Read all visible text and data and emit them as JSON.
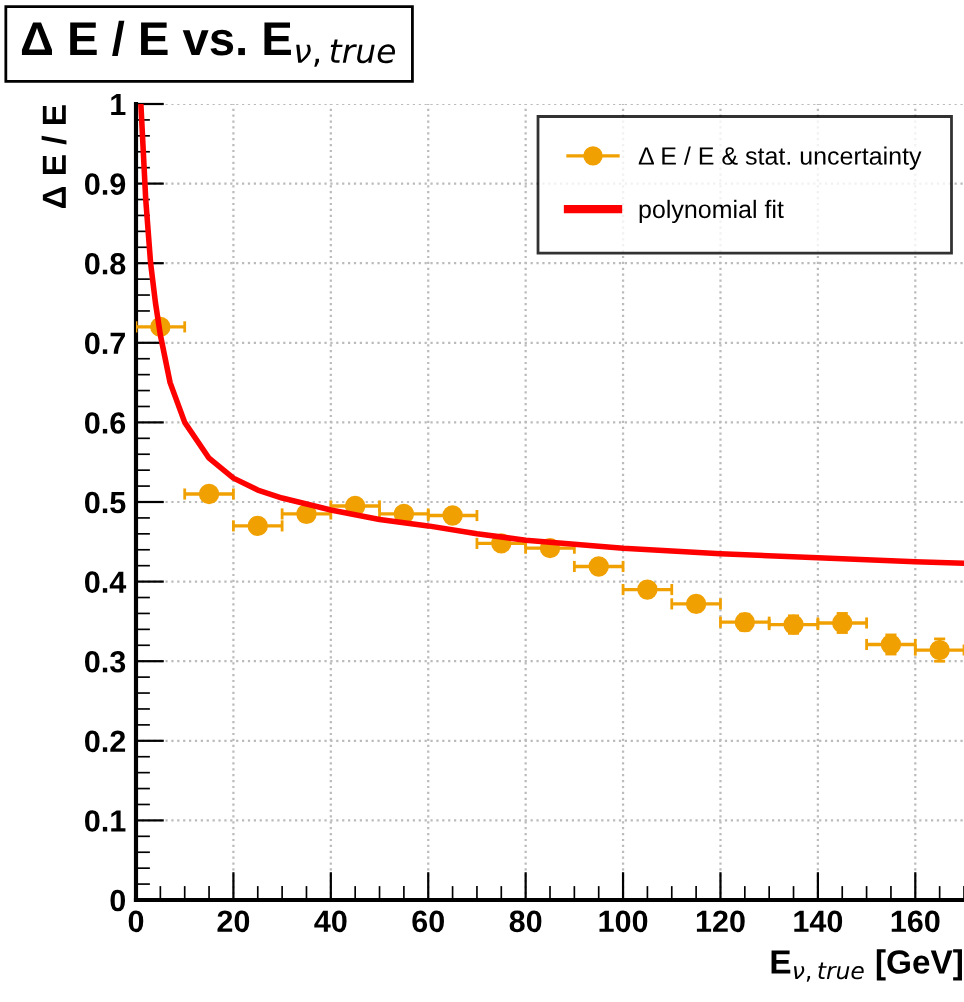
{
  "chart_data": {
    "type": "scatter",
    "title": "Δ E / E vs. E$_{ν,true}$",
    "xlabel": "E$_{ν,true}$ [GeV]",
    "ylabel": "Δ E / E",
    "xlim": [
      0,
      170
    ],
    "ylim": [
      0,
      1
    ],
    "xticks": [
      0,
      20,
      40,
      60,
      80,
      100,
      120,
      140,
      160
    ],
    "yticks": [
      0,
      0.1,
      0.2,
      0.3,
      0.4,
      0.5,
      0.6,
      0.7,
      0.8,
      0.9,
      1
    ],
    "grid": true,
    "legend": "top right",
    "marker": "circle",
    "series": [
      {
        "name": "Δ E / E & stat. uncertainty",
        "color": "#f0a000",
        "x": [
          5,
          15,
          25,
          35,
          45,
          55,
          65,
          75,
          85,
          95,
          105,
          115,
          125,
          135,
          145,
          155,
          165
        ],
        "values": [
          0.72,
          0.51,
          0.47,
          0.485,
          0.495,
          0.485,
          0.483,
          0.448,
          0.442,
          0.419,
          0.39,
          0.372,
          0.349,
          0.346,
          0.348,
          0.321,
          0.314
        ],
        "xerrors": [
          5,
          5,
          5,
          5,
          5,
          5,
          5,
          5,
          5,
          5,
          5,
          5,
          5,
          5,
          5,
          5,
          5
        ],
        "errors": [
          0.004,
          0.004,
          0.004,
          0.005,
          0.005,
          0.006,
          0.006,
          0.006,
          0.007,
          0.008,
          0.009,
          0.009,
          0.01,
          0.011,
          0.012,
          0.012,
          0.014
        ]
      },
      {
        "name": "polynomial fit",
        "type": "line",
        "color": "#ff0000",
        "marker": "none",
        "line_style": "solid",
        "x": [
          1,
          2,
          3,
          4,
          5,
          7,
          10,
          15,
          20,
          25,
          30,
          40,
          50,
          60,
          70,
          80,
          90,
          100,
          120,
          140,
          160,
          170
        ],
        "values": [
          1.0,
          0.88,
          0.8,
          0.75,
          0.71,
          0.65,
          0.6,
          0.555,
          0.53,
          0.515,
          0.505,
          0.49,
          0.478,
          0.47,
          0.46,
          0.452,
          0.447,
          0.442,
          0.435,
          0.43,
          0.425,
          0.423
        ]
      }
    ]
  }
}
